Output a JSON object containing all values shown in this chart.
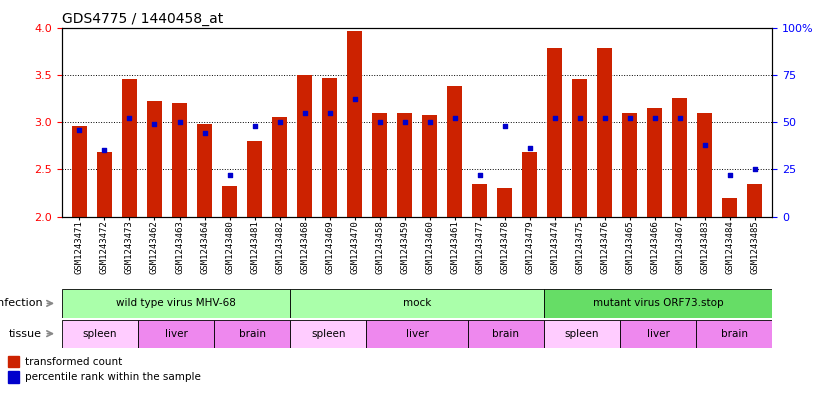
{
  "title": "GDS4775 / 1440458_at",
  "samples": [
    "GSM1243471",
    "GSM1243472",
    "GSM1243473",
    "GSM1243462",
    "GSM1243463",
    "GSM1243464",
    "GSM1243480",
    "GSM1243481",
    "GSM1243482",
    "GSM1243468",
    "GSM1243469",
    "GSM1243470",
    "GSM1243458",
    "GSM1243459",
    "GSM1243460",
    "GSM1243461",
    "GSM1243477",
    "GSM1243478",
    "GSM1243479",
    "GSM1243474",
    "GSM1243475",
    "GSM1243476",
    "GSM1243465",
    "GSM1243466",
    "GSM1243467",
    "GSM1243483",
    "GSM1243484",
    "GSM1243485"
  ],
  "transformed_counts": [
    2.96,
    2.68,
    3.46,
    3.22,
    3.2,
    2.98,
    2.32,
    2.8,
    3.05,
    3.5,
    3.47,
    3.96,
    3.1,
    3.1,
    3.07,
    3.38,
    2.34,
    2.3,
    2.68,
    3.78,
    3.46,
    3.78,
    3.1,
    3.15,
    3.25,
    3.1,
    2.2,
    2.34
  ],
  "percentile_ranks": [
    46,
    35,
    52,
    49,
    50,
    44,
    22,
    48,
    50,
    55,
    55,
    62,
    50,
    50,
    50,
    52,
    22,
    48,
    36,
    52,
    52,
    52,
    52,
    52,
    52,
    38,
    22,
    25
  ],
  "infection_groups": [
    {
      "label": "wild type virus MHV-68",
      "start": 0,
      "end": 9,
      "color": "#aaffaa"
    },
    {
      "label": "mock",
      "start": 9,
      "end": 19,
      "color": "#aaffaa"
    },
    {
      "label": "mutant virus ORF73.stop",
      "start": 19,
      "end": 28,
      "color": "#66dd66"
    }
  ],
  "tissue_groups": [
    {
      "label": "spleen",
      "start": 0,
      "end": 3,
      "color": "#ffccff"
    },
    {
      "label": "liver",
      "start": 3,
      "end": 6,
      "color": "#ee88ee"
    },
    {
      "label": "brain",
      "start": 6,
      "end": 9,
      "color": "#ee88ee"
    },
    {
      "label": "spleen",
      "start": 9,
      "end": 12,
      "color": "#ffccff"
    },
    {
      "label": "liver",
      "start": 12,
      "end": 16,
      "color": "#ee88ee"
    },
    {
      "label": "brain",
      "start": 16,
      "end": 19,
      "color": "#ee88ee"
    },
    {
      "label": "spleen",
      "start": 19,
      "end": 22,
      "color": "#ffccff"
    },
    {
      "label": "liver",
      "start": 22,
      "end": 25,
      "color": "#ee88ee"
    },
    {
      "label": "brain",
      "start": 25,
      "end": 28,
      "color": "#ee88ee"
    }
  ],
  "ylim_left": [
    2.0,
    4.0
  ],
  "ylim_right": [
    0,
    100
  ],
  "bar_color": "#CC2200",
  "dot_color": "#0000CC",
  "background_color": "#ffffff",
  "title_fontsize": 10,
  "tick_fontsize": 6.5,
  "row_label_fontsize": 8,
  "label_color": "#888888"
}
